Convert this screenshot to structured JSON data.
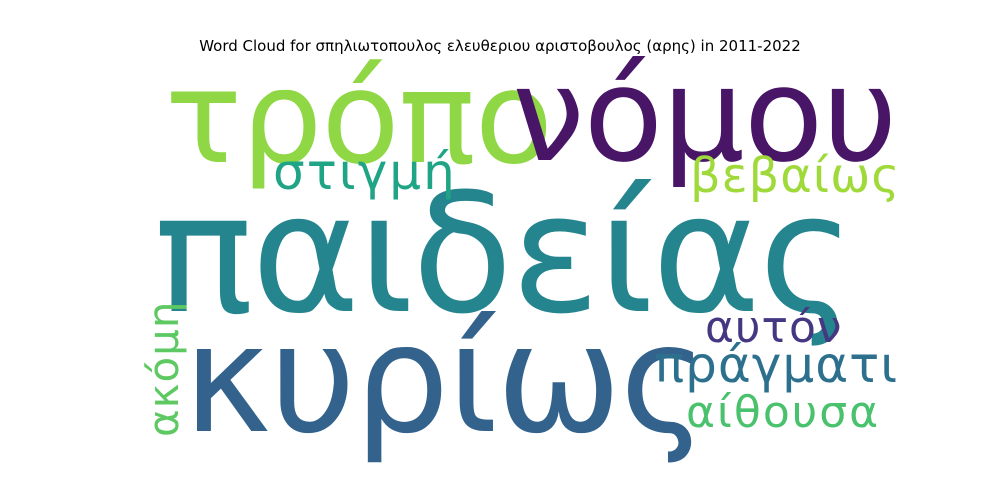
{
  "title": "Word Cloud for σπηλιωτοπουλος ελευθεριου αριστοβουλος (αρης) in 2011-2022",
  "words": [
    {
      "text": "παιδείας",
      "color": "#25858e"
    },
    {
      "text": "κυρίως",
      "color": "#33638d"
    },
    {
      "text": "τρόπο",
      "color": "#8fd744"
    },
    {
      "text": "νόμου",
      "color": "#481567"
    },
    {
      "text": "στιγμή",
      "color": "#20a486"
    },
    {
      "text": "βεβαίως",
      "color": "#9fda3a"
    },
    {
      "text": "αυτόν",
      "color": "#453781"
    },
    {
      "text": "πράγματι",
      "color": "#2d708e"
    },
    {
      "text": "αίθουσα",
      "color": "#4ac16d"
    },
    {
      "text": "ακόμη",
      "color": "#5ec962"
    }
  ]
}
